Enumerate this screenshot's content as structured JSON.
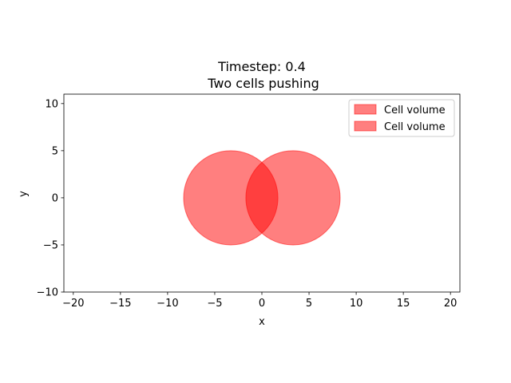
{
  "chart_data": {
    "type": "scatter",
    "title": "Timestep: 0.4",
    "subtitle": "Two cells pushing",
    "xlabel": "x",
    "ylabel": "y",
    "xlim": [
      -21,
      21
    ],
    "ylim": [
      -10,
      11
    ],
    "xticks": [
      -20,
      -15,
      -10,
      -5,
      0,
      5,
      10,
      15,
      20
    ],
    "xtick_labels": [
      "−20",
      "−15",
      "−10",
      "−5",
      "0",
      "5",
      "10",
      "15",
      "20"
    ],
    "yticks": [
      -10,
      -5,
      0,
      5,
      10
    ],
    "ytick_labels": [
      "−10",
      "−5",
      "0",
      "5",
      "10"
    ],
    "grid": false,
    "legend_position": "top-right",
    "series": [
      {
        "name": "Cell volume",
        "shape": "circle",
        "center": [
          -3.3,
          0
        ],
        "radius": 5,
        "color": "#ff0000",
        "alpha": 0.5
      },
      {
        "name": "Cell volume",
        "shape": "circle",
        "center": [
          3.3,
          0
        ],
        "radius": 5,
        "color": "#ff0000",
        "alpha": 0.5
      }
    ]
  }
}
